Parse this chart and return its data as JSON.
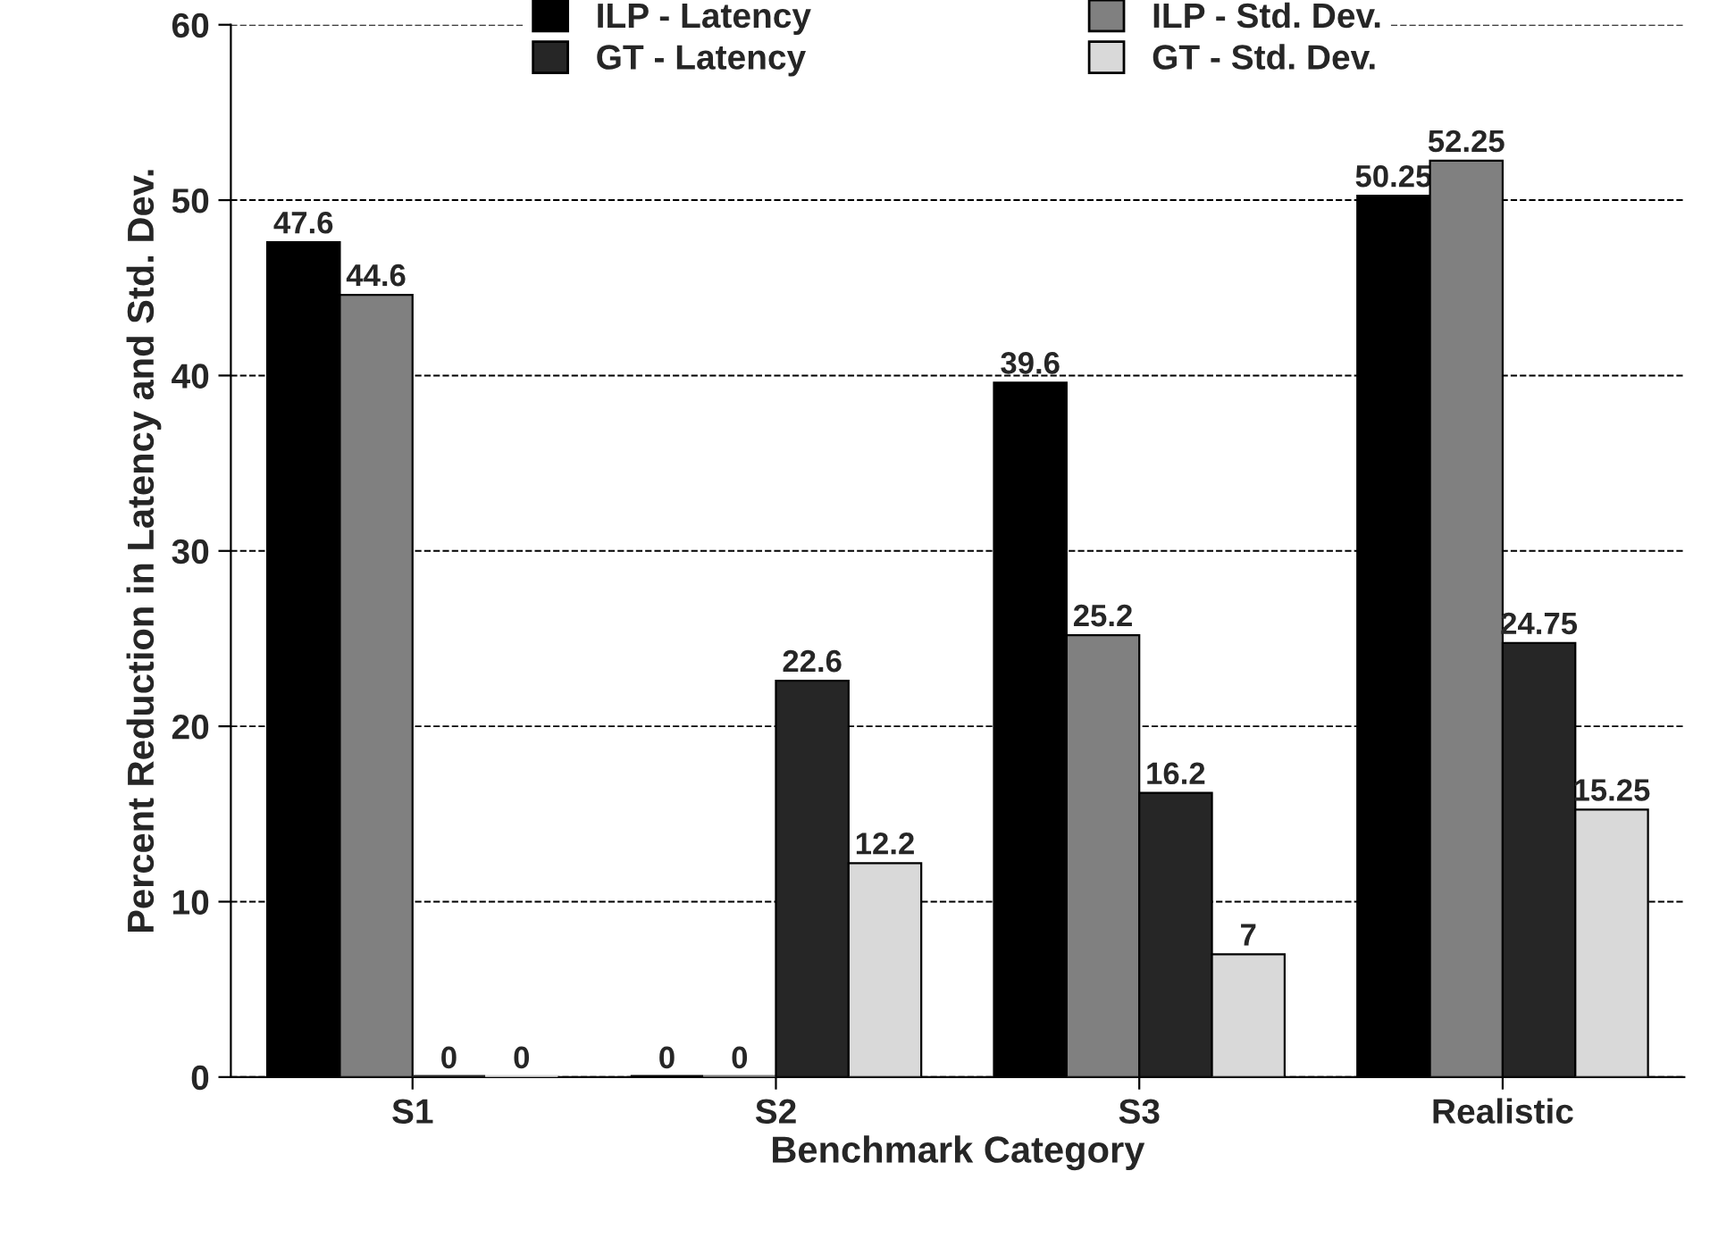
{
  "chart_data": {
    "type": "bar",
    "xlabel": "Benchmark Category",
    "ylabel": "Percent Reduction in Latency and Std. Dev.",
    "categories": [
      "S1",
      "S2",
      "S3",
      "Realistic"
    ],
    "series": [
      {
        "name": "ILP - Latency",
        "color": "#000000",
        "values": [
          47.6,
          0,
          39.6,
          50.25
        ]
      },
      {
        "name": "ILP - Std. Dev.",
        "color": "#808080",
        "values": [
          44.6,
          0,
          25.2,
          52.25
        ]
      },
      {
        "name": "GT - Latency",
        "color": "#262626",
        "values": [
          0,
          22.6,
          16.2,
          24.75
        ]
      },
      {
        "name": "GT - Std. Dev.",
        "color": "#d9d9d9",
        "values": [
          0,
          12.2,
          7,
          15.25
        ]
      }
    ],
    "ylim": [
      0,
      60
    ],
    "yticks": [
      0,
      10,
      20,
      30,
      40,
      50,
      60
    ],
    "grid": "y",
    "legend": "top",
    "data_labels": true
  }
}
